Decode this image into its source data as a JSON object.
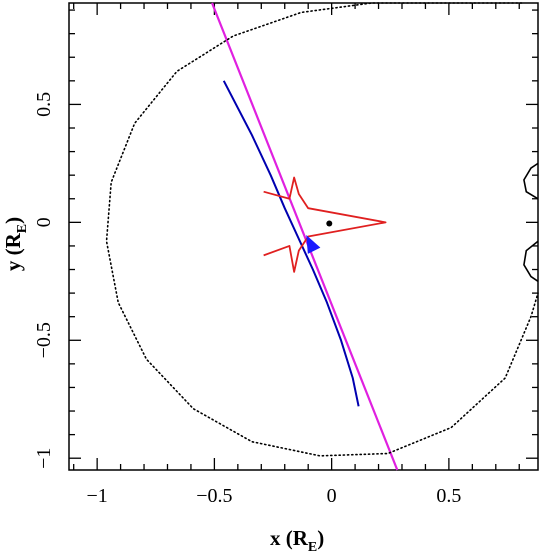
{
  "chart_data": {
    "type": "line",
    "xlim": [
      -1.12,
      0.88
    ],
    "ylim": [
      -1.05,
      0.93
    ],
    "x_ticks": [
      {
        "value": -1,
        "label": "−1"
      },
      {
        "value": -0.5,
        "label": "−0.5"
      },
      {
        "value": 0,
        "label": "0"
      },
      {
        "value": 0.5,
        "label": "0.5"
      }
    ],
    "y_ticks": [
      {
        "value": -1,
        "label": "−1"
      },
      {
        "value": -0.5,
        "label": "−0.5"
      },
      {
        "value": 0,
        "label": "0"
      },
      {
        "value": 0.5,
        "label": "0.5"
      }
    ],
    "xlabel": {
      "main": "x (R",
      "sub": "E",
      "close": ")"
    },
    "ylabel": {
      "main": "y (R",
      "sub": "E",
      "close": ")"
    },
    "series": [
      {
        "style": "straight-line",
        "color": "#e020e0",
        "points": [
          [
            -0.51,
            0.93
          ],
          [
            0.28,
            -1.05
          ]
        ]
      },
      {
        "style": "curve",
        "color": "#0000b0",
        "points": [
          [
            -0.46,
            0.6
          ],
          [
            -0.34,
            0.37
          ],
          [
            -0.26,
            0.2
          ],
          [
            -0.2,
            0.06
          ],
          [
            -0.14,
            -0.07
          ],
          [
            -0.08,
            -0.2
          ],
          [
            -0.02,
            -0.34
          ],
          [
            0.04,
            -0.5
          ],
          [
            0.09,
            -0.66
          ],
          [
            0.115,
            -0.78
          ]
        ]
      },
      {
        "style": "caustic",
        "color": "#e02020",
        "points": [
          [
            -0.29,
            0.13
          ],
          [
            -0.18,
            0.1
          ],
          [
            -0.16,
            0.19
          ],
          [
            -0.14,
            0.12
          ],
          [
            -0.1,
            0.06
          ],
          [
            0.23,
            0.0
          ],
          [
            -0.1,
            -0.06
          ],
          [
            -0.14,
            -0.12
          ],
          [
            -0.16,
            -0.21
          ],
          [
            -0.18,
            -0.1
          ],
          [
            -0.29,
            -0.14
          ]
        ]
      },
      {
        "style": "critical-curve",
        "color": "#000000",
        "points": [
          [
            0.81,
            0.93
          ],
          [
            0.46,
            0.93
          ],
          [
            0.17,
            0.93
          ],
          [
            -0.13,
            0.89
          ],
          [
            -0.42,
            0.79
          ],
          [
            -0.66,
            0.64
          ],
          [
            -0.84,
            0.42
          ],
          [
            -0.94,
            0.17
          ],
          [
            -0.96,
            -0.08
          ],
          [
            -0.91,
            -0.34
          ],
          [
            -0.79,
            -0.58
          ],
          [
            -0.59,
            -0.79
          ],
          [
            -0.34,
            -0.93
          ],
          [
            -0.05,
            -0.99
          ],
          [
            0.24,
            -0.98
          ],
          [
            0.51,
            -0.87
          ],
          [
            0.74,
            -0.66
          ],
          [
            0.85,
            -0.4
          ],
          [
            0.88,
            -0.3
          ]
        ]
      },
      {
        "style": "critical-curve-right",
        "color": "#000000",
        "points": [
          [
            0.88,
            0.1
          ],
          [
            0.83,
            0.13
          ],
          [
            0.82,
            0.18
          ],
          [
            0.85,
            0.23
          ],
          [
            0.88,
            0.25
          ]
        ]
      },
      {
        "style": "critical-curve-right",
        "color": "#000000",
        "points": [
          [
            0.88,
            -0.08
          ],
          [
            0.83,
            -0.12
          ],
          [
            0.82,
            -0.18
          ],
          [
            0.85,
            -0.23
          ],
          [
            0.88,
            -0.25
          ]
        ]
      }
    ],
    "markers": [
      {
        "shape": "dot",
        "color": "#000000",
        "point": [
          -0.01,
          -0.005
        ]
      },
      {
        "shape": "arrow",
        "color": "#1a1aff",
        "point": [
          -0.09,
          -0.09
        ],
        "direction": [
          -0.5,
          1
        ]
      }
    ]
  }
}
